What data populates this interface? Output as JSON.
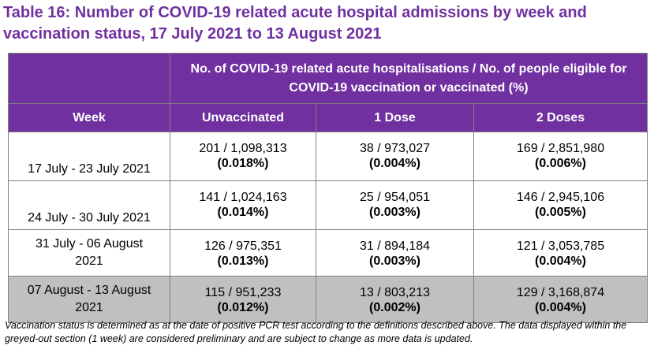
{
  "title": "Table 16: Number of COVID-19 related acute hospital admissions by week and vaccination status, 17 July 2021 to 13 August 2021",
  "header": {
    "group": "No. of COVID-19 related acute hospitalisations / No. of people eligible for COVID-19 vaccination or vaccinated (%)",
    "week": "Week",
    "unvaccinated": "Unvaccinated",
    "dose1": "1 Dose",
    "dose2": "2 Doses"
  },
  "rows": [
    {
      "week": "17 July - 23 July 2021",
      "unvax_count": "201 / 1,098,313",
      "unvax_pct": "(0.018%)",
      "d1_count": "38 / 973,027",
      "d1_pct": "(0.004%)",
      "d2_count": "169 / 2,851,980",
      "d2_pct": "(0.006%)"
    },
    {
      "week": "24 July - 30 July 2021",
      "unvax_count": "141 / 1,024,163",
      "unvax_pct": "(0.014%)",
      "d1_count": "25 / 954,051",
      "d1_pct": "(0.003%)",
      "d2_count": "146 / 2,945,106",
      "d2_pct": "(0.005%)"
    },
    {
      "week": "31 July - 06 August 2021",
      "unvax_count": "126 / 975,351",
      "unvax_pct": "(0.013%)",
      "d1_count": "31 / 894,184",
      "d1_pct": "(0.003%)",
      "d2_count": "121 / 3,053,785",
      "d2_pct": "(0.004%)"
    },
    {
      "week": "07 August - 13 August 2021",
      "unvax_count": "115 / 951,233",
      "unvax_pct": "(0.012%)",
      "d1_count": "13 / 803,213",
      "d1_pct": "(0.002%)",
      "d2_count": "129 / 3,168,874",
      "d2_pct": "(0.004%)"
    }
  ],
  "footnote": "Vaccination status is determined as at the date of positive PCR test according to the definitions described above. The data displayed within the greyed-out section (1 week) are considered preliminary and are subject to change as more data is updated.",
  "colors": {
    "accent": "#7030a0",
    "grey_row": "#c0c0c0"
  }
}
